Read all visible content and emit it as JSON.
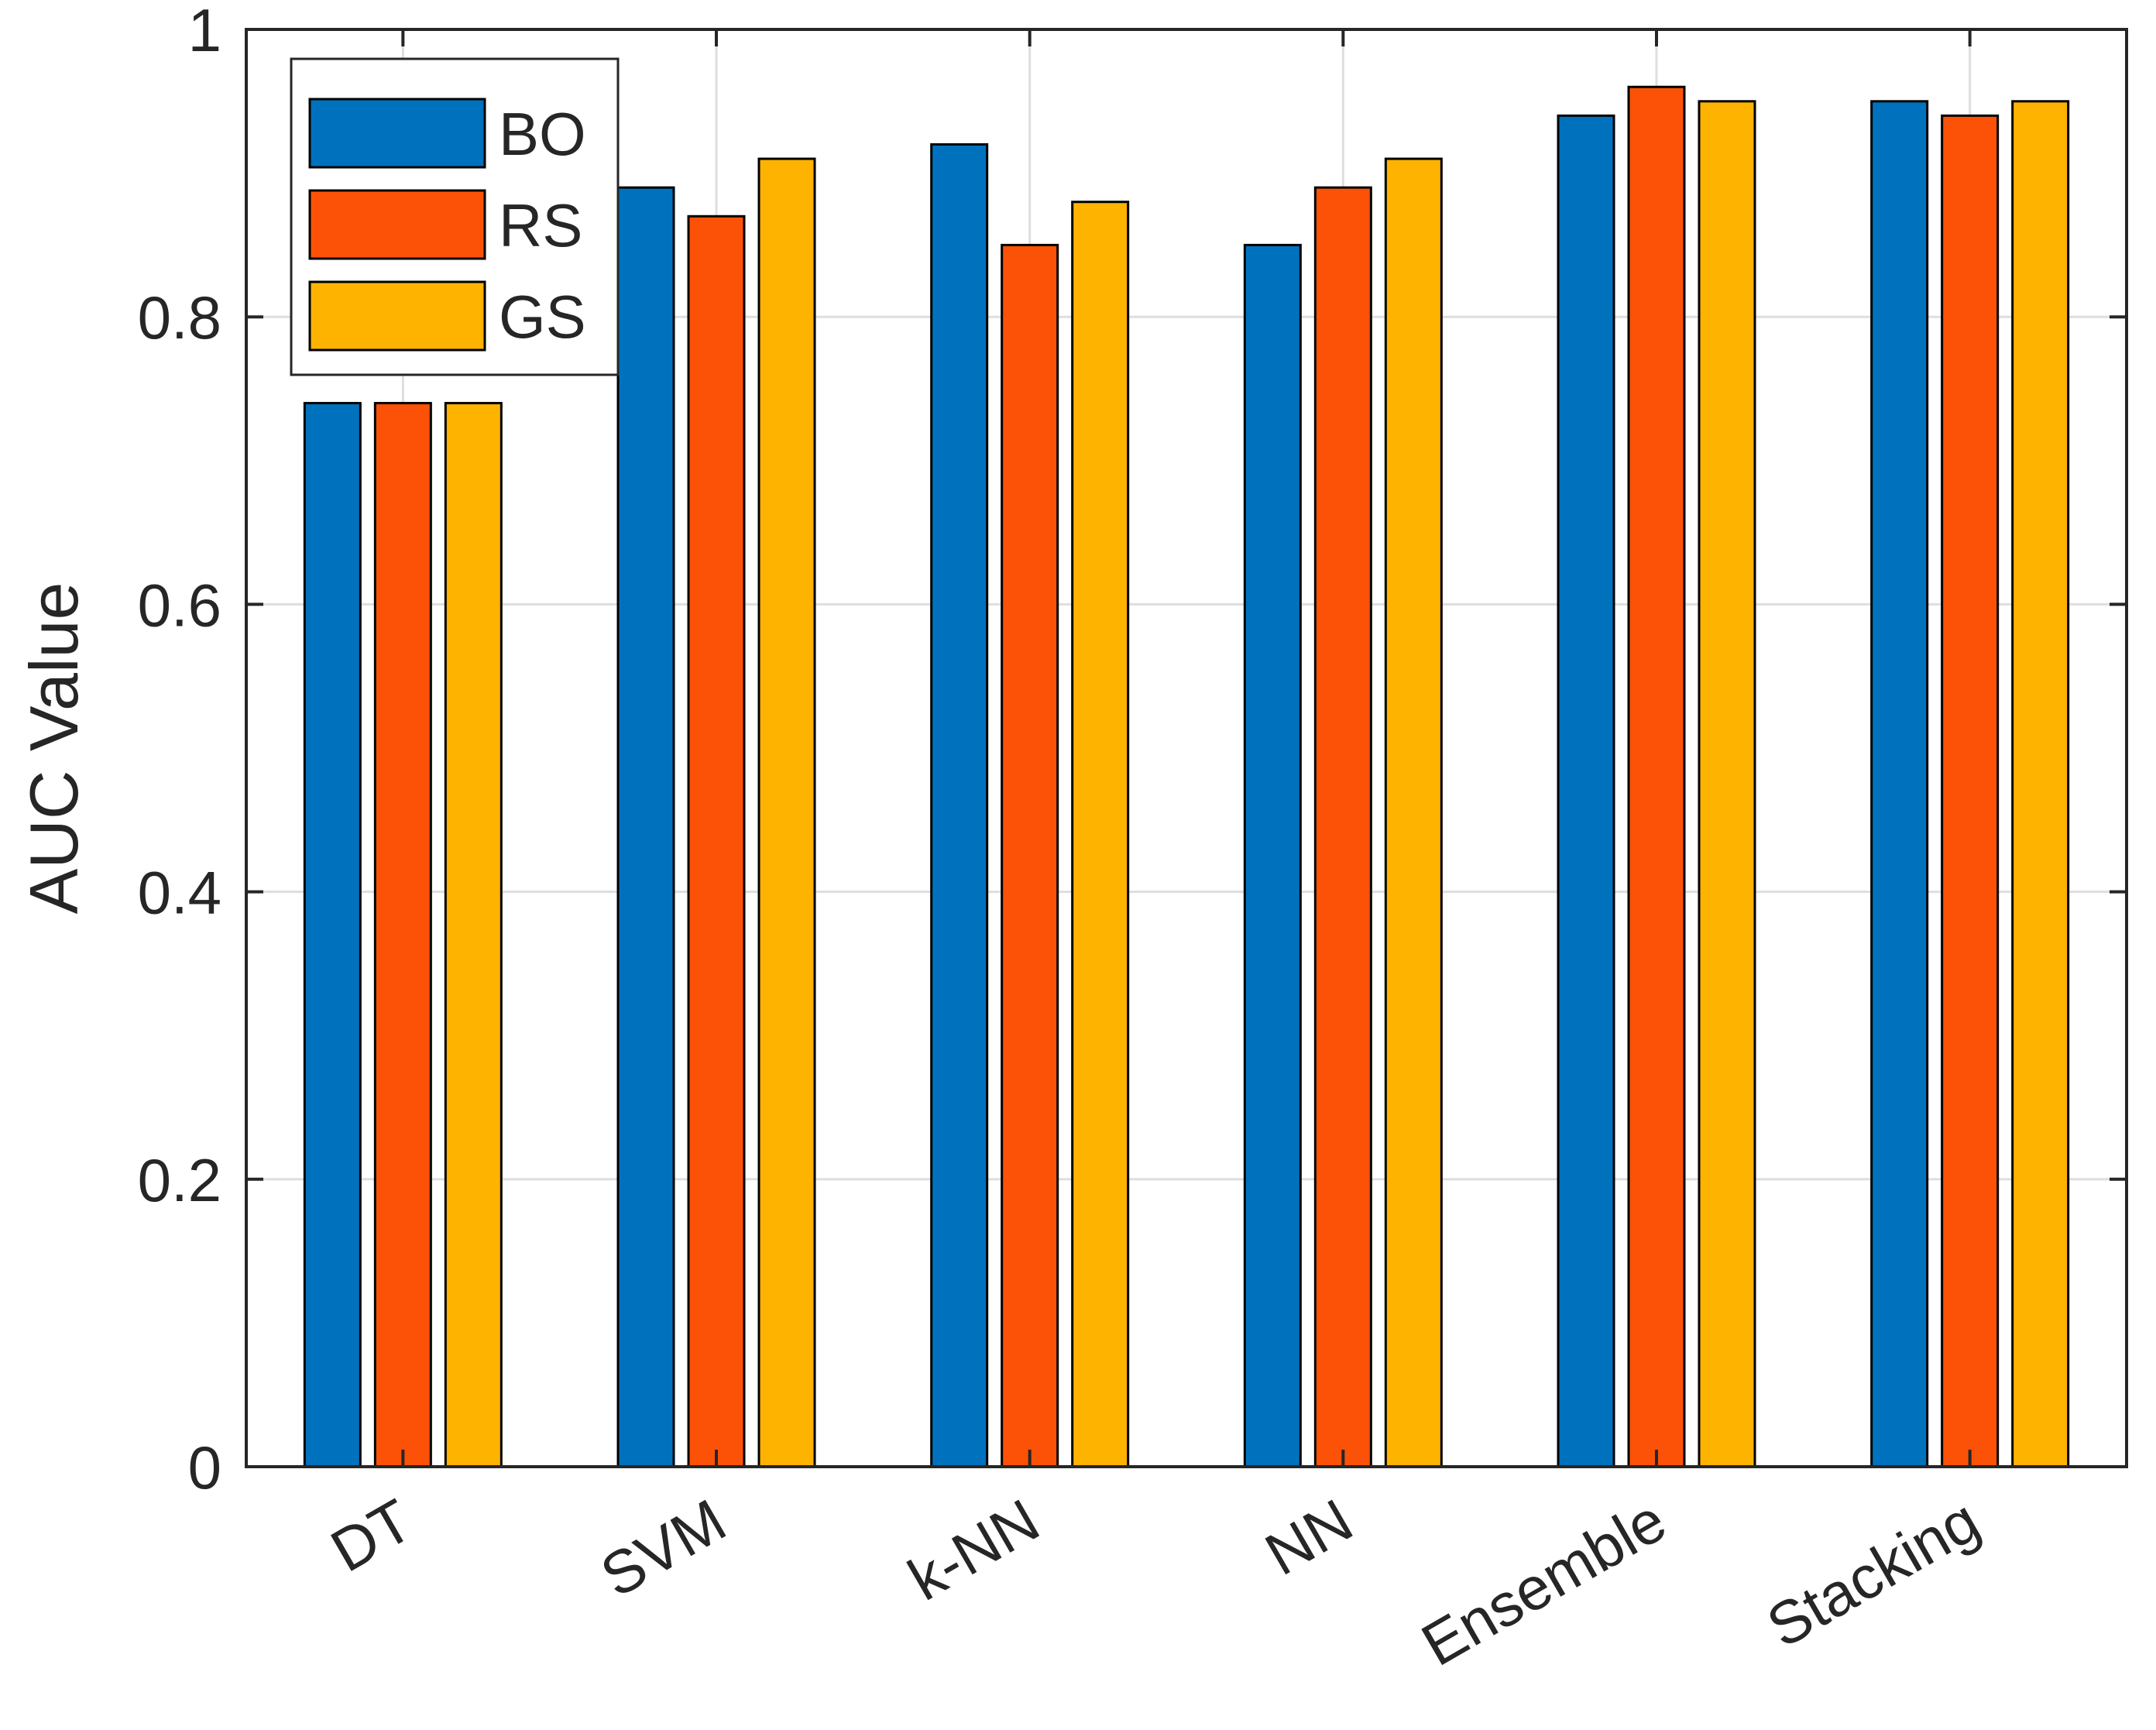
{
  "chart_data": {
    "type": "bar",
    "title": "",
    "xlabel": "",
    "ylabel": "AUC Value",
    "ylim": [
      0,
      1
    ],
    "yticks": [
      "0",
      "0.2",
      "0.4",
      "0.6",
      "0.8",
      "1"
    ],
    "ytick_values": [
      0,
      0.2,
      0.4,
      0.6,
      0.8,
      1
    ],
    "grid": true,
    "legend_position": "top-left",
    "categories": [
      "DT",
      "SVM",
      "k-NN",
      "NN",
      "Ensemble",
      "Stacking"
    ],
    "series": [
      {
        "name": "BO",
        "color": "#0072BD",
        "values": [
          0.74,
          0.89,
          0.92,
          0.85,
          0.94,
          0.95
        ]
      },
      {
        "name": "RS",
        "color": "#FB5207",
        "values": [
          0.74,
          0.87,
          0.85,
          0.89,
          0.96,
          0.94
        ]
      },
      {
        "name": "GS",
        "color": "#FDB300",
        "values": [
          0.74,
          0.91,
          0.88,
          0.91,
          0.95,
          0.95
        ]
      }
    ]
  }
}
